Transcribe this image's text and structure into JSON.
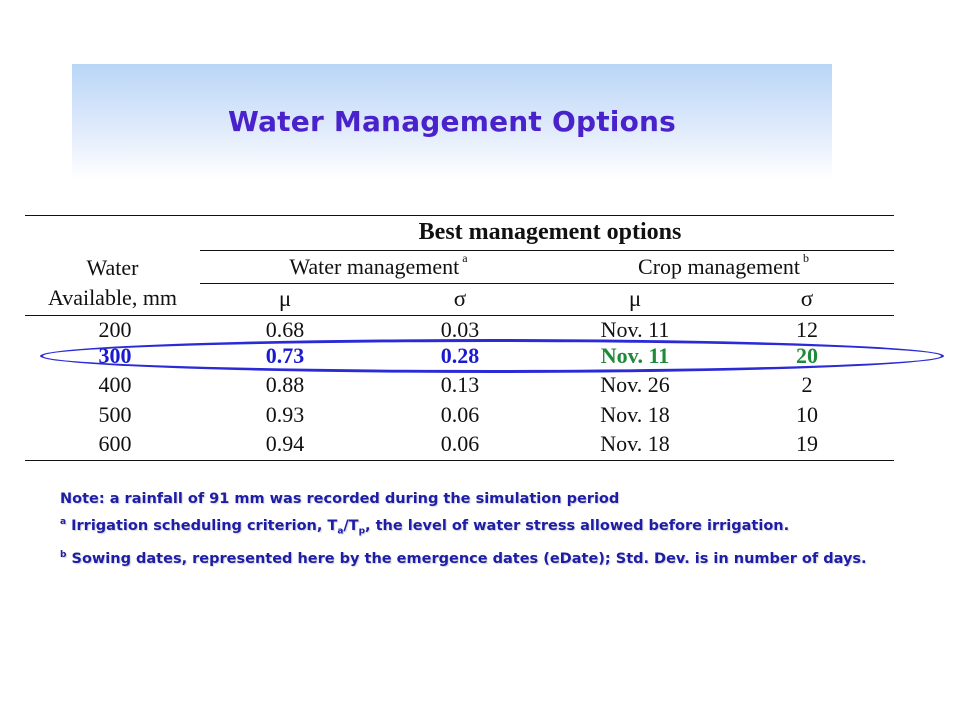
{
  "title": "Water Management Options",
  "table": {
    "header_main": "Best management options",
    "col_water_line1": "Water",
    "col_water_line2": "Available, mm",
    "group_water": "Water management",
    "group_water_sup": "a",
    "group_crop": "Crop management",
    "group_crop_sup": "b",
    "mu": "μ",
    "sigma": "σ",
    "rows": [
      {
        "water": "200",
        "wm_mu": "0.68",
        "wm_sigma": "0.03",
        "cm_mu": "Nov. 11",
        "cm_sigma": "12"
      },
      {
        "water": "300",
        "wm_mu": "0.73",
        "wm_sigma": "0.28",
        "cm_mu": "Nov. 11",
        "cm_sigma": "20"
      },
      {
        "water": "400",
        "wm_mu": "0.88",
        "wm_sigma": "0.13",
        "cm_mu": "Nov. 26",
        "cm_sigma": "2"
      },
      {
        "water": "500",
        "wm_mu": "0.93",
        "wm_sigma": "0.06",
        "cm_mu": "Nov. 18",
        "cm_sigma": "10"
      },
      {
        "water": "600",
        "wm_mu": "0.94",
        "wm_sigma": "0.06",
        "cm_mu": "Nov. 18",
        "cm_sigma": "19"
      }
    ],
    "highlight_color": "#2a2ad6",
    "highlight_water_color": "#1a1ad0",
    "highlight_crop_color": "#1f8a3a"
  },
  "notes": {
    "line1": "Note:  a rainfall of 91 mm was recorded during the simulation period",
    "line2_sup": "a",
    "line2_a": " Irrigation scheduling criterion, T",
    "line2_sub1": "a",
    "line2_b": "/T",
    "line2_sub2": "p",
    "line2_c": ", the level of water stress allowed before irrigation.",
    "line3_sup": "b",
    "line3_text": " Sowing dates, represented here by the emergence dates (eDate); Std. Dev. is in number of days."
  }
}
